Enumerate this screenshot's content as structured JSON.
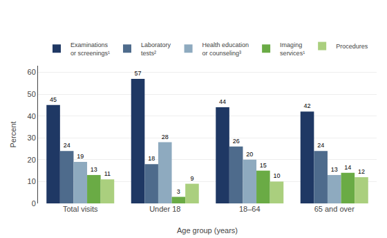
{
  "chart_data": {
    "type": "bar",
    "categories": [
      "Total visits",
      "Under 18",
      "18–64",
      "65 and over"
    ],
    "series": [
      {
        "name": "Examinations\nor screenings¹",
        "color": "#1f3864",
        "values": [
          45,
          57,
          44,
          42
        ]
      },
      {
        "name": "Laboratory\ntests²",
        "color": "#4e6b8c",
        "values": [
          24,
          18,
          26,
          24
        ]
      },
      {
        "name": "Health education\nor counseling³",
        "color": "#8eaabf",
        "values": [
          19,
          28,
          20,
          13
        ]
      },
      {
        "name": "Imaging\nservices¹",
        "color": "#6aab45",
        "values": [
          13,
          3,
          15,
          14
        ]
      },
      {
        "name": "Procedures",
        "color": "#aacf7e",
        "values": [
          11,
          9,
          10,
          12
        ]
      }
    ],
    "xlabel": "Age group (years)",
    "ylabel": "Percent",
    "ylim": [
      0,
      63
    ],
    "yticks": [
      0,
      10,
      20,
      30,
      40,
      50,
      60
    ],
    "grid": true,
    "legend": "top",
    "data_labels": true
  }
}
